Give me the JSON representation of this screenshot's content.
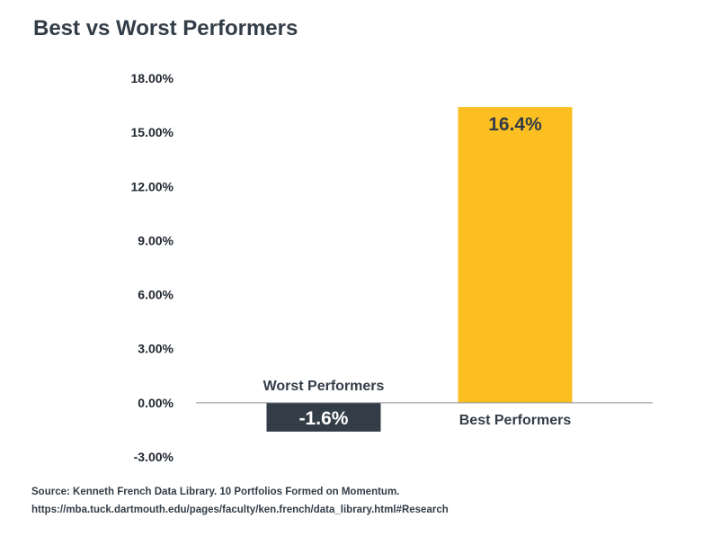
{
  "chart_data": {
    "type": "bar",
    "title": "Best vs Worst Performers",
    "xlabel": "",
    "ylabel": "",
    "categories": [
      "Worst Performers",
      "Best Performers"
    ],
    "values": [
      -1.6,
      16.4
    ],
    "data_labels": [
      "-1.6%",
      "16.4%"
    ],
    "colors": [
      "#333d47",
      "#fbbf22"
    ],
    "ylim": [
      -3,
      18
    ],
    "yticks": [
      18,
      15,
      12,
      9,
      6,
      3,
      0,
      -3
    ],
    "ytick_labels": [
      "18.00%",
      "15.00%",
      "12.00%",
      "9.00%",
      "6.00%",
      "3.00%",
      "0.00%",
      "-3.00%"
    ],
    "grid": false,
    "legend": "none"
  },
  "source": {
    "line1": "Source: Kenneth French Data Library. 10 Portfolios Formed on Momentum.",
    "line2": "https://mba.tuck.dartmouth.edu/pages/faculty/ken.french/data_library.html#Research"
  }
}
